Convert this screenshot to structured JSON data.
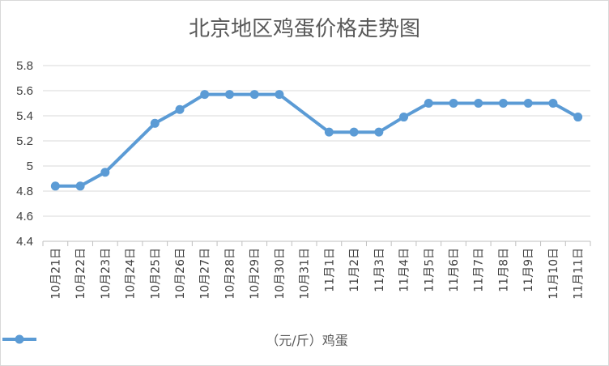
{
  "chart_data": {
    "type": "line",
    "title": "北京地区鸡蛋价格走势图",
    "xlabel": "",
    "ylabel": "",
    "categories": [
      "10月21日",
      "10月22日",
      "10月23日",
      "10月24日",
      "10月25日",
      "10月26日",
      "10月27日",
      "10月28日",
      "10月29日",
      "10月30日",
      "10月31日",
      "11月1日",
      "11月2日",
      "11月3日",
      "11月4日",
      "11月5日",
      "11月6日",
      "11月7日",
      "11月8日",
      "11月9日",
      "11月10日",
      "11月11日"
    ],
    "series": [
      {
        "name": "（元/斤）鸡蛋",
        "color": "#5b9bd5",
        "values": [
          4.84,
          4.84,
          4.95,
          null,
          5.34,
          5.45,
          5.57,
          5.57,
          5.57,
          5.57,
          null,
          5.27,
          5.27,
          5.27,
          5.39,
          5.5,
          5.5,
          5.5,
          5.5,
          5.5,
          5.5,
          5.39
        ]
      }
    ],
    "ylim": [
      4.4,
      5.8
    ],
    "yticks": [
      "4.4",
      "4.6",
      "4.8",
      "5",
      "5.2",
      "5.4",
      "5.6",
      "5.8"
    ],
    "grid": true,
    "legend_position": "bottom",
    "span_gaps": true
  }
}
